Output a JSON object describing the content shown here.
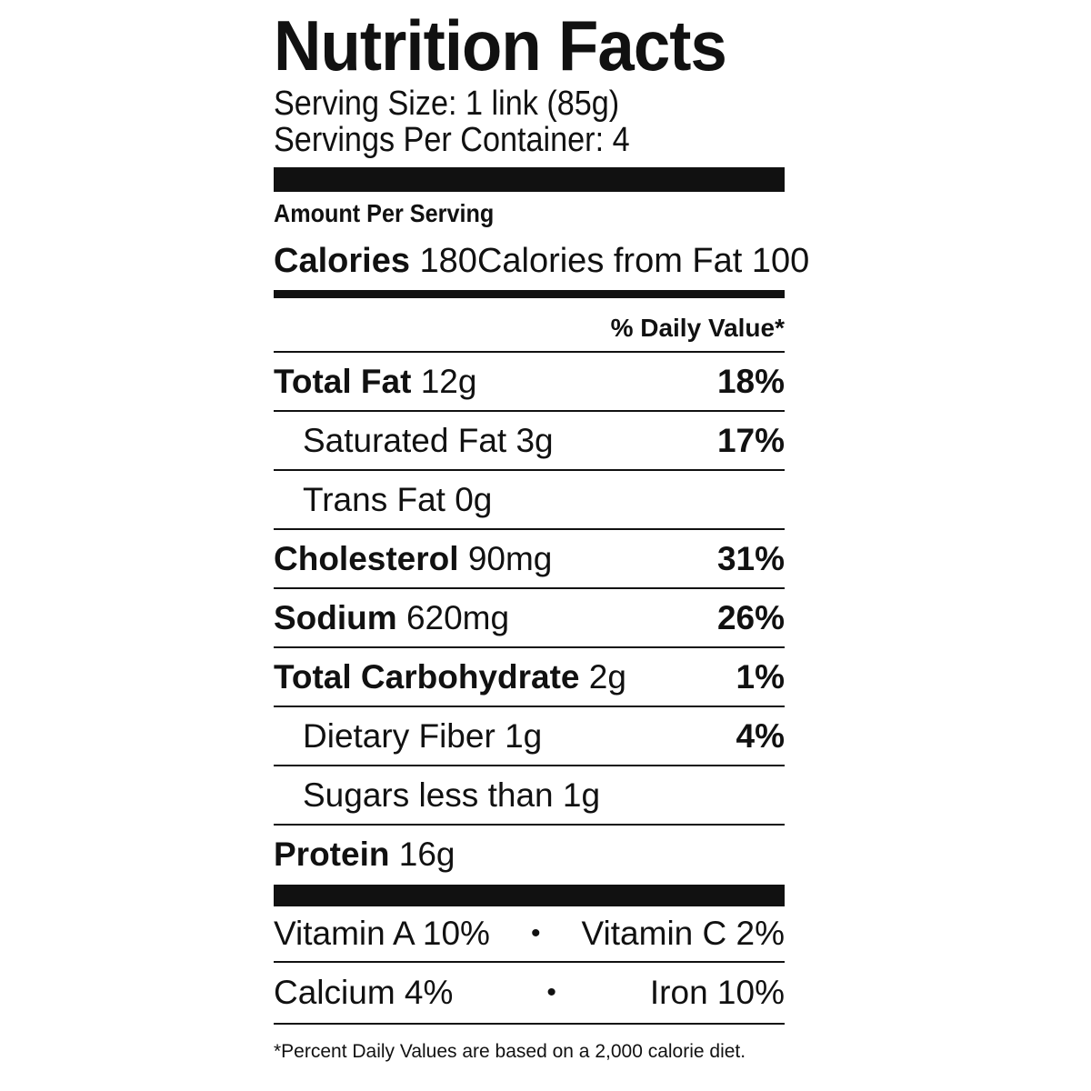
{
  "title": "Nutrition Facts",
  "serving_size": "Serving Size: 1 link (85g)",
  "servings_per_container": "Servings Per Container: 4",
  "amount_per_serving": "Amount Per Serving",
  "calories": {
    "label": "Calories",
    "value": "180",
    "from_fat": "Calories from Fat 100"
  },
  "daily_value_header": "% Daily Value*",
  "nutrients": [
    {
      "label": "Total Fat",
      "amount": "12g",
      "dv": "18%"
    },
    {
      "label": "Saturated Fat",
      "amount": "3g",
      "dv": "17%"
    },
    {
      "label": "Trans Fat",
      "amount": "0g",
      "dv": ""
    },
    {
      "label": "Cholesterol",
      "amount": "90mg",
      "dv": "31%"
    },
    {
      "label": "Sodium",
      "amount": "620mg",
      "dv": "26%"
    },
    {
      "label": "Total Carbohydrate",
      "amount": "2g",
      "dv": "1%"
    },
    {
      "label": "Dietary Fiber",
      "amount": "1g",
      "dv": "4%"
    },
    {
      "label": "Sugars less than",
      "amount": "1g",
      "dv": ""
    },
    {
      "label": "Protein",
      "amount": "16g",
      "dv": ""
    }
  ],
  "vitamins": [
    {
      "left": "Vitamin A 10%",
      "sep": "•",
      "right": "Vitamin C 2%"
    },
    {
      "left": "Calcium 4%",
      "sep": "•",
      "right": "Iron 10%"
    }
  ],
  "footnote": "*Percent Daily Values are based on a 2,000 calorie diet."
}
